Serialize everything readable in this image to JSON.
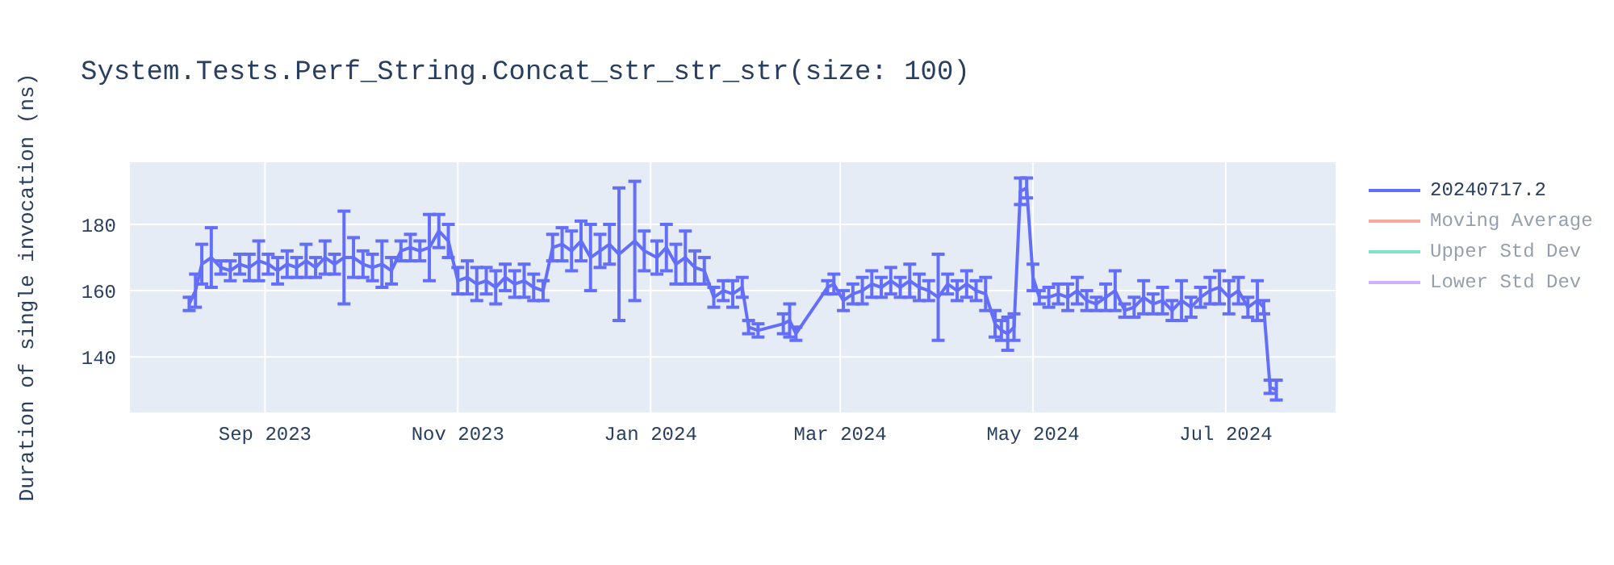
{
  "chart_data": {
    "type": "line",
    "title": "System.Tests.Perf_String.Concat_str_str_str(size: 100)",
    "ylabel": "Duration of single invocation (ns)",
    "x": [
      "2023-08-08",
      "2023-08-10",
      "2023-08-12",
      "2023-08-15",
      "2023-08-18",
      "2023-08-21",
      "2023-08-24",
      "2023-08-27",
      "2023-08-30",
      "2023-09-02",
      "2023-09-05",
      "2023-09-08",
      "2023-09-11",
      "2023-09-14",
      "2023-09-17",
      "2023-09-20",
      "2023-09-23",
      "2023-09-26",
      "2023-09-29",
      "2023-10-02",
      "2023-10-05",
      "2023-10-08",
      "2023-10-11",
      "2023-10-14",
      "2023-10-17",
      "2023-10-20",
      "2023-10-23",
      "2023-10-26",
      "2023-10-29",
      "2023-11-01",
      "2023-11-04",
      "2023-11-07",
      "2023-11-10",
      "2023-11-13",
      "2023-11-16",
      "2023-11-19",
      "2023-11-22",
      "2023-11-25",
      "2023-11-28",
      "2023-12-01",
      "2023-12-04",
      "2023-12-07",
      "2023-12-10",
      "2023-12-13",
      "2023-12-16",
      "2023-12-19",
      "2023-12-22",
      "2023-12-27",
      "2023-12-30",
      "2024-01-03",
      "2024-01-06",
      "2024-01-09",
      "2024-01-12",
      "2024-01-15",
      "2024-01-18",
      "2024-01-21",
      "2024-01-24",
      "2024-01-27",
      "2024-01-30",
      "2024-02-01",
      "2024-02-04",
      "2024-02-12",
      "2024-02-14",
      "2024-02-16",
      "2024-02-26",
      "2024-02-28",
      "2024-03-02",
      "2024-03-05",
      "2024-03-08",
      "2024-03-11",
      "2024-03-14",
      "2024-03-17",
      "2024-03-20",
      "2024-03-23",
      "2024-03-26",
      "2024-03-29",
      "2024-04-01",
      "2024-04-04",
      "2024-04-07",
      "2024-04-10",
      "2024-04-13",
      "2024-04-16",
      "2024-04-19",
      "2024-04-21",
      "2024-04-23",
      "2024-04-25",
      "2024-04-27",
      "2024-04-29",
      "2024-05-01",
      "2024-05-03",
      "2024-05-06",
      "2024-05-09",
      "2024-05-12",
      "2024-05-15",
      "2024-05-18",
      "2024-05-21",
      "2024-05-24",
      "2024-05-27",
      "2024-05-30",
      "2024-06-02",
      "2024-06-05",
      "2024-06-08",
      "2024-06-11",
      "2024-06-14",
      "2024-06-17",
      "2024-06-20",
      "2024-06-23",
      "2024-06-26",
      "2024-06-29",
      "2024-07-02",
      "2024-07-05",
      "2024-07-08",
      "2024-07-11",
      "2024-07-13",
      "2024-07-15",
      "2024-07-17"
    ],
    "series": [
      {
        "name": "20240717.2",
        "color": "#636efa",
        "values": [
          156,
          160,
          168,
          170,
          167,
          166,
          168,
          167,
          169,
          168,
          166,
          168,
          167,
          169,
          167,
          170,
          168,
          170,
          170,
          168,
          167,
          168,
          166,
          172,
          173,
          172,
          173,
          178,
          175,
          163,
          164,
          162,
          163,
          161,
          164,
          162,
          163,
          161,
          160,
          173,
          174,
          172,
          175,
          170,
          172,
          174,
          171,
          175,
          172,
          170,
          173,
          168,
          170,
          167,
          166,
          158,
          160,
          159,
          161,
          149,
          148,
          150,
          151,
          147,
          161,
          162,
          157,
          159,
          160,
          162,
          161,
          163,
          161,
          163,
          161,
          160,
          158,
          162,
          160,
          162,
          160,
          159,
          150,
          148,
          147,
          149,
          190,
          191,
          164,
          158,
          158,
          159,
          158,
          160,
          157,
          156,
          158,
          160,
          154,
          155,
          158,
          156,
          157,
          154,
          157,
          155,
          158,
          160,
          161,
          158,
          160,
          155,
          157,
          155,
          131,
          130
        ],
        "errors": [
          2,
          5,
          6,
          9,
          2,
          3,
          3,
          4,
          6,
          3,
          4,
          4,
          3,
          5,
          3,
          5,
          3,
          14,
          6,
          4,
          4,
          7,
          4,
          3,
          4,
          3,
          10,
          5,
          5,
          4,
          5,
          5,
          4,
          5,
          4,
          4,
          5,
          4,
          3,
          4,
          5,
          6,
          6,
          10,
          5,
          6,
          20,
          18,
          6,
          5,
          7,
          6,
          8,
          5,
          4,
          3,
          3,
          4,
          3,
          2,
          2,
          3,
          5,
          2,
          2,
          3,
          3,
          3,
          4,
          4,
          3,
          4,
          3,
          5,
          4,
          3,
          13,
          3,
          3,
          4,
          3,
          5,
          4,
          3,
          5,
          4,
          4,
          3,
          4,
          2,
          3,
          3,
          4,
          4,
          3,
          2,
          4,
          6,
          2,
          3,
          5,
          3,
          4,
          3,
          6,
          3,
          3,
          4,
          5,
          5,
          4,
          3,
          6,
          2,
          2,
          3
        ]
      },
      {
        "name": "Moving Average",
        "color": "#ef553b",
        "values": [
          null,
          null,
          null,
          null,
          null,
          null,
          null,
          null,
          null,
          null,
          null,
          null,
          null,
          null,
          null,
          null,
          null,
          null,
          null,
          null,
          null,
          null,
          null,
          null,
          null,
          null,
          null,
          null,
          null,
          null,
          null,
          null,
          null,
          null,
          null,
          null,
          null,
          null,
          null,
          null,
          null,
          null,
          null,
          null,
          null,
          null,
          null,
          null,
          null,
          null,
          null,
          null,
          null,
          null,
          null,
          null,
          null,
          null,
          null,
          null,
          null,
          null,
          null,
          null,
          null,
          null,
          null,
          null,
          null,
          null,
          null,
          null,
          null,
          null,
          null,
          null,
          null,
          null,
          null,
          null,
          null,
          null,
          null,
          null,
          null,
          null,
          null,
          null,
          null,
          null,
          null,
          null,
          null,
          null,
          null,
          null,
          null,
          null,
          null,
          null,
          null,
          null,
          null,
          null,
          null,
          null,
          null,
          null,
          null,
          null,
          null,
          null,
          null,
          null,
          null,
          null
        ]
      },
      {
        "name": "Upper Std Dev",
        "color": "#00cc96",
        "values": [
          null,
          null,
          null,
          null,
          null,
          null,
          null,
          null,
          null,
          null,
          null,
          null,
          null,
          null,
          null,
          null,
          null,
          null,
          null,
          null,
          null,
          null,
          null,
          null,
          null,
          null,
          null,
          null,
          null,
          null,
          null,
          null,
          null,
          null,
          null,
          null,
          null,
          null,
          null,
          null,
          null,
          null,
          null,
          null,
          null,
          null,
          null,
          null,
          null,
          null,
          null,
          null,
          null,
          null,
          null,
          null,
          null,
          null,
          null,
          null,
          null,
          null,
          null,
          null,
          null,
          null,
          null,
          null,
          null,
          null,
          null,
          null,
          null,
          null,
          null,
          null,
          null,
          null,
          null,
          null,
          null,
          null,
          null,
          null,
          null,
          null,
          null,
          null,
          null,
          null,
          null,
          null,
          null,
          null,
          null,
          null,
          null,
          null,
          null,
          null,
          null,
          null,
          null,
          null,
          null,
          null,
          null,
          null,
          null,
          null,
          null,
          null,
          null,
          null,
          null,
          null
        ]
      },
      {
        "name": "Lower Std Dev",
        "color": "#ab63fa",
        "values": [
          null,
          null,
          null,
          null,
          null,
          null,
          null,
          null,
          null,
          null,
          null,
          null,
          null,
          null,
          null,
          null,
          null,
          null,
          null,
          null,
          null,
          null,
          null,
          null,
          null,
          null,
          null,
          null,
          null,
          null,
          null,
          null,
          null,
          null,
          null,
          null,
          null,
          null,
          null,
          null,
          null,
          null,
          null,
          null,
          null,
          null,
          null,
          null,
          null,
          null,
          null,
          null,
          null,
          null,
          null,
          null,
          null,
          null,
          null,
          null,
          null,
          null,
          null,
          null,
          null,
          null,
          null,
          null,
          null,
          null,
          null,
          null,
          null,
          null,
          null,
          null,
          null,
          null,
          null,
          null,
          null,
          null,
          null,
          null,
          null,
          null,
          null,
          null,
          null,
          null,
          null,
          null,
          null,
          null,
          null,
          null,
          null,
          null,
          null,
          null,
          null,
          null,
          null,
          null,
          null,
          null,
          null,
          null,
          null,
          null,
          null,
          null,
          null,
          null,
          null,
          null
        ]
      }
    ],
    "xlim": [
      "2023-07-20",
      "2024-08-05"
    ],
    "xticks": [
      {
        "value": "2023-09-01",
        "label": "Sep 2023"
      },
      {
        "value": "2023-11-01",
        "label": "Nov 2023"
      },
      {
        "value": "2024-01-01",
        "label": "Jan 2024"
      },
      {
        "value": "2024-03-01",
        "label": "Mar 2024"
      },
      {
        "value": "2024-05-01",
        "label": "May 2024"
      },
      {
        "value": "2024-07-01",
        "label": "Jul 2024"
      }
    ],
    "ylim": [
      123,
      199
    ],
    "yticks": [
      140,
      160,
      180
    ],
    "grid": true,
    "legend": "top right",
    "marker": "none",
    "line_style": "solid"
  }
}
